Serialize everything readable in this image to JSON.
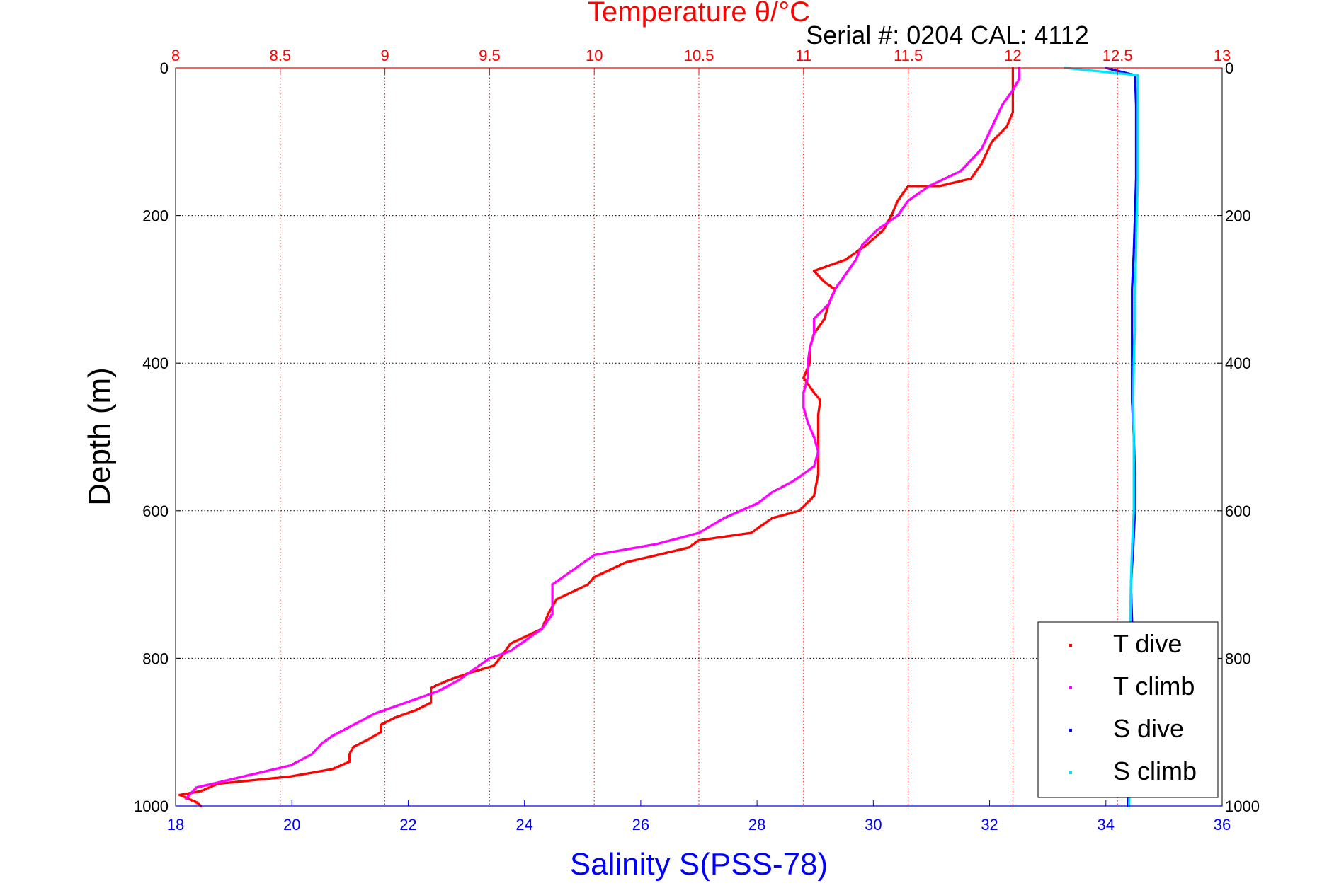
{
  "chart_data": {
    "type": "scatter",
    "title": "Temperature θ/°C",
    "subtitle": "Serial #: 0204  CAL: 4112",
    "ylabel": "Depth (m)",
    "xlabel_bottom": "Salinity S(PSS-78)",
    "y_axis": {
      "min": 0,
      "max": 1000,
      "reversed": true,
      "ticks": [
        "0",
        "200",
        "400",
        "600",
        "800",
        "1000"
      ],
      "tick_values": [
        0,
        200,
        400,
        600,
        800,
        1000
      ]
    },
    "x_top": {
      "min": 8,
      "max": 13,
      "ticks": [
        "8",
        "8.5",
        "9",
        "9.5",
        "10",
        "10.5",
        "11",
        "11.5",
        "12",
        "12.5",
        "13"
      ],
      "tick_values": [
        8,
        8.5,
        9,
        9.5,
        10,
        10.5,
        11,
        11.5,
        12,
        12.5,
        13
      ]
    },
    "x_bottom": {
      "min": 18,
      "max": 36,
      "ticks": [
        "18",
        "20",
        "22",
        "24",
        "26",
        "28",
        "30",
        "32",
        "34",
        "36"
      ],
      "tick_values": [
        18,
        20,
        22,
        24,
        26,
        28,
        30,
        32,
        34,
        36
      ]
    },
    "grid": true,
    "legend_position": "bottom-right",
    "colors": {
      "T dive": "#ff0000",
      "T climb": "#ff00ff",
      "S dive": "#0000ff",
      "S climb": "#00e5ff",
      "top_axis": "#ff0000",
      "bottom_axis": "#0000ff"
    },
    "series": [
      {
        "name": "T dive",
        "axis": "top",
        "points": [
          [
            12.0,
            0
          ],
          [
            12.0,
            15
          ],
          [
            12.0,
            30
          ],
          [
            12.0,
            45
          ],
          [
            12.0,
            60
          ],
          [
            11.97,
            80
          ],
          [
            11.9,
            100
          ],
          [
            11.85,
            130
          ],
          [
            11.8,
            150
          ],
          [
            11.65,
            160
          ],
          [
            11.5,
            160
          ],
          [
            11.45,
            180
          ],
          [
            11.42,
            200
          ],
          [
            11.38,
            220
          ],
          [
            11.3,
            240
          ],
          [
            11.2,
            260
          ],
          [
            11.1,
            270
          ],
          [
            11.05,
            275
          ],
          [
            11.1,
            290
          ],
          [
            11.15,
            300
          ],
          [
            11.12,
            320
          ],
          [
            11.1,
            340
          ],
          [
            11.05,
            360
          ],
          [
            11.03,
            380
          ],
          [
            11.03,
            400
          ],
          [
            11.0,
            420
          ],
          [
            11.05,
            440
          ],
          [
            11.08,
            450
          ],
          [
            11.07,
            470
          ],
          [
            11.07,
            500
          ],
          [
            11.07,
            550
          ],
          [
            11.05,
            580
          ],
          [
            10.98,
            600
          ],
          [
            10.85,
            610
          ],
          [
            10.75,
            630
          ],
          [
            10.5,
            640
          ],
          [
            10.45,
            650
          ],
          [
            10.3,
            660
          ],
          [
            10.15,
            670
          ],
          [
            10.0,
            690
          ],
          [
            9.97,
            700
          ],
          [
            9.82,
            720
          ],
          [
            9.78,
            740
          ],
          [
            9.75,
            760
          ],
          [
            9.6,
            780
          ],
          [
            9.55,
            800
          ],
          [
            9.52,
            810
          ],
          [
            9.4,
            820
          ],
          [
            9.3,
            830
          ],
          [
            9.22,
            840
          ],
          [
            9.22,
            860
          ],
          [
            9.15,
            870
          ],
          [
            9.05,
            880
          ],
          [
            8.98,
            890
          ],
          [
            8.98,
            900
          ],
          [
            8.92,
            910
          ],
          [
            8.85,
            920
          ],
          [
            8.83,
            930
          ],
          [
            8.83,
            940
          ],
          [
            8.75,
            950
          ],
          [
            8.55,
            960
          ],
          [
            8.2,
            970
          ],
          [
            8.12,
            980
          ],
          [
            8.02,
            985
          ],
          [
            8.1,
            995
          ],
          [
            8.12,
            1000
          ]
        ]
      },
      {
        "name": "T climb",
        "axis": "top",
        "points": [
          [
            12.03,
            0
          ],
          [
            12.03,
            15
          ],
          [
            12.0,
            30
          ],
          [
            11.95,
            50
          ],
          [
            11.9,
            80
          ],
          [
            11.85,
            110
          ],
          [
            11.75,
            140
          ],
          [
            11.6,
            160
          ],
          [
            11.5,
            180
          ],
          [
            11.45,
            200
          ],
          [
            11.35,
            220
          ],
          [
            11.28,
            240
          ],
          [
            11.25,
            260
          ],
          [
            11.2,
            280
          ],
          [
            11.15,
            300
          ],
          [
            11.12,
            320
          ],
          [
            11.05,
            340
          ],
          [
            11.05,
            360
          ],
          [
            11.03,
            380
          ],
          [
            11.02,
            400
          ],
          [
            11.02,
            420
          ],
          [
            11.0,
            440
          ],
          [
            11.0,
            460
          ],
          [
            11.02,
            480
          ],
          [
            11.05,
            500
          ],
          [
            11.07,
            520
          ],
          [
            11.05,
            540
          ],
          [
            11.0,
            550
          ],
          [
            10.95,
            560
          ],
          [
            10.85,
            575
          ],
          [
            10.78,
            590
          ],
          [
            10.62,
            610
          ],
          [
            10.5,
            630
          ],
          [
            10.3,
            645
          ],
          [
            10.0,
            660
          ],
          [
            9.9,
            680
          ],
          [
            9.8,
            700
          ],
          [
            9.8,
            720
          ],
          [
            9.8,
            740
          ],
          [
            9.75,
            760
          ],
          [
            9.65,
            780
          ],
          [
            9.6,
            790
          ],
          [
            9.5,
            800
          ],
          [
            9.45,
            810
          ],
          [
            9.35,
            830
          ],
          [
            9.25,
            845
          ],
          [
            9.15,
            855
          ],
          [
            9.05,
            865
          ],
          [
            8.95,
            875
          ],
          [
            8.85,
            890
          ],
          [
            8.75,
            905
          ],
          [
            8.7,
            915
          ],
          [
            8.65,
            930
          ],
          [
            8.55,
            945
          ],
          [
            8.4,
            955
          ],
          [
            8.25,
            965
          ],
          [
            8.1,
            975
          ],
          [
            8.05,
            990
          ]
        ]
      },
      {
        "name": "S dive",
        "axis": "bottom",
        "points": [
          [
            34.0,
            0
          ],
          [
            34.5,
            10
          ],
          [
            34.52,
            50
          ],
          [
            34.52,
            100
          ],
          [
            34.52,
            150
          ],
          [
            34.5,
            200
          ],
          [
            34.48,
            250
          ],
          [
            34.45,
            300
          ],
          [
            34.45,
            350
          ],
          [
            34.45,
            400
          ],
          [
            34.45,
            450
          ],
          [
            34.48,
            500
          ],
          [
            34.5,
            550
          ],
          [
            34.5,
            600
          ],
          [
            34.47,
            650
          ],
          [
            34.43,
            700
          ],
          [
            34.45,
            750
          ],
          [
            34.45,
            800
          ],
          [
            34.43,
            850
          ],
          [
            34.42,
            900
          ],
          [
            34.42,
            950
          ],
          [
            34.38,
            1000
          ]
        ]
      },
      {
        "name": "S climb",
        "axis": "bottom",
        "points": [
          [
            33.3,
            0
          ],
          [
            34.55,
            10
          ],
          [
            34.55,
            50
          ],
          [
            34.55,
            100
          ],
          [
            34.55,
            150
          ],
          [
            34.53,
            200
          ],
          [
            34.52,
            250
          ],
          [
            34.5,
            300
          ],
          [
            34.5,
            350
          ],
          [
            34.48,
            400
          ],
          [
            34.47,
            450
          ],
          [
            34.48,
            500
          ],
          [
            34.48,
            550
          ],
          [
            34.48,
            600
          ],
          [
            34.45,
            650
          ],
          [
            34.43,
            700
          ],
          [
            34.42,
            750
          ],
          [
            34.42,
            800
          ],
          [
            34.42,
            850
          ],
          [
            34.42,
            900
          ],
          [
            34.42,
            950
          ],
          [
            34.4,
            1000
          ]
        ]
      }
    ]
  }
}
